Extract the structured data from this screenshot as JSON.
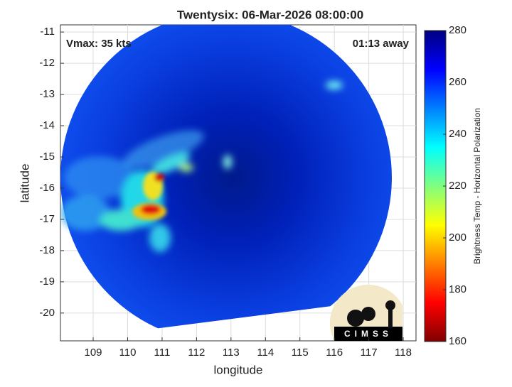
{
  "chart_data": {
    "type": "image",
    "title": "Twentysix: 06-Mar-2026 08:00:00",
    "annotations": [
      "Vmax: 35 kts",
      "01:13 away"
    ],
    "xlabel": "longitude",
    "ylabel": "latitude",
    "xlim": [
      108.05,
      118.37
    ],
    "xticks": [
      109,
      110,
      111,
      112,
      113,
      114,
      115,
      116,
      117,
      118
    ],
    "ylim": [
      -20.89,
      -10.77
    ],
    "yticks": [
      -20,
      -19,
      -18,
      -17,
      -16,
      -15,
      -14,
      -13,
      -12,
      -11
    ],
    "grid": true,
    "colorbar": {
      "label": "Brightness Temp - Horizontal Polarization",
      "clim": [
        160,
        280
      ],
      "ticks": [
        160,
        180,
        200,
        220,
        240,
        260,
        280
      ],
      "colormap": "jet"
    },
    "logo": "CIMSS"
  }
}
